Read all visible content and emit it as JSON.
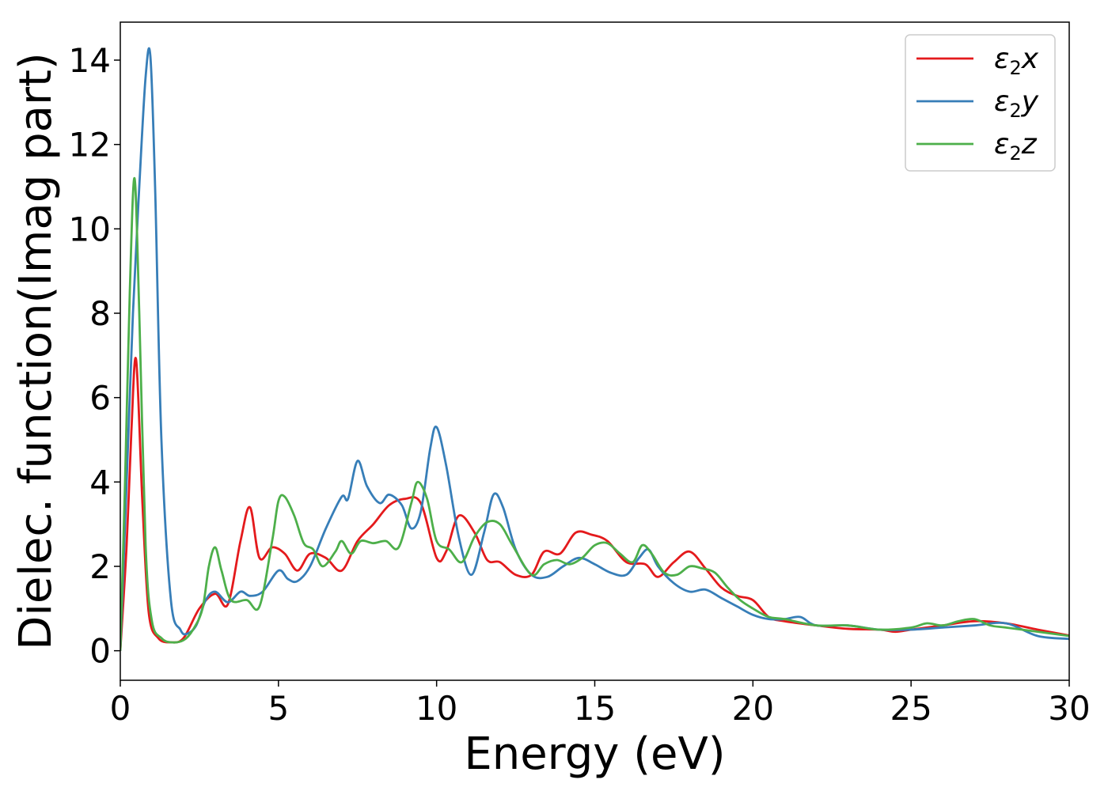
{
  "chart_data": {
    "type": "line",
    "xlabel": "Energy (eV)",
    "ylabel": "Dielec. function(Imag part)",
    "xlim": [
      0,
      30
    ],
    "ylim": [
      -0.7,
      14.9
    ],
    "xticks": [
      0,
      5,
      10,
      15,
      20,
      25,
      30
    ],
    "yticks": [
      0,
      2,
      4,
      6,
      8,
      10,
      12,
      14
    ],
    "grid": false,
    "legend_position": "top-right",
    "series": [
      {
        "name": "ε₂x",
        "legend_main": "ε",
        "legend_sub": "2",
        "legend_var": "x",
        "color": "#e41a1c",
        "x": [
          0,
          0.2,
          0.35,
          0.5,
          0.7,
          0.9,
          1.2,
          1.6,
          2.0,
          2.5,
          3.0,
          3.4,
          3.8,
          4.1,
          4.4,
          4.8,
          5.2,
          5.6,
          6.0,
          6.5,
          7.0,
          7.5,
          8.0,
          8.5,
          9.0,
          9.5,
          10.0,
          10.3,
          10.7,
          11.2,
          11.6,
          12.0,
          12.5,
          13.0,
          13.4,
          13.9,
          14.4,
          14.9,
          15.4,
          16.0,
          16.6,
          17.0,
          17.5,
          18.0,
          18.5,
          19.0,
          19.5,
          20.0,
          20.5,
          21.0,
          22.0,
          23.0,
          24.0,
          24.5,
          25.0,
          26.0,
          27.0,
          28.0,
          29.0,
          30.0
        ],
        "values": [
          0.0,
          2.5,
          5.2,
          6.9,
          3.5,
          0.9,
          0.3,
          0.2,
          0.3,
          1.0,
          1.35,
          1.1,
          2.6,
          3.4,
          2.2,
          2.45,
          2.3,
          1.9,
          2.3,
          2.2,
          1.9,
          2.6,
          3.0,
          3.45,
          3.6,
          3.5,
          2.2,
          2.35,
          3.2,
          2.8,
          2.15,
          2.1,
          1.8,
          1.8,
          2.35,
          2.3,
          2.8,
          2.75,
          2.6,
          2.1,
          2.05,
          1.75,
          2.1,
          2.35,
          1.95,
          1.5,
          1.3,
          1.2,
          0.8,
          0.7,
          0.6,
          0.52,
          0.5,
          0.45,
          0.5,
          0.6,
          0.7,
          0.65,
          0.5,
          0.36
        ]
      },
      {
        "name": "ε₂y",
        "legend_main": "ε",
        "legend_sub": "2",
        "legend_var": "y",
        "color": "#377eb8",
        "x": [
          0,
          0.2,
          0.4,
          0.6,
          0.8,
          0.95,
          1.1,
          1.3,
          1.6,
          1.9,
          2.1,
          2.4,
          2.7,
          3.0,
          3.4,
          3.8,
          4.1,
          4.5,
          5.0,
          5.3,
          5.6,
          6.0,
          6.5,
          7.0,
          7.2,
          7.5,
          7.8,
          8.2,
          8.5,
          8.9,
          9.2,
          9.5,
          9.8,
          10.0,
          10.3,
          10.7,
          11.1,
          11.5,
          11.8,
          12.1,
          12.5,
          13.0,
          13.5,
          14.0,
          14.5,
          15.0,
          15.5,
          16.0,
          16.4,
          16.7,
          17.0,
          17.5,
          18.0,
          18.5,
          19.0,
          19.5,
          20.0,
          20.5,
          21.0,
          21.5,
          22.0,
          23.0,
          24.0,
          25.0,
          26.0,
          27.0,
          28.0,
          29.0,
          30.0
        ],
        "values": [
          0.0,
          4.0,
          8.0,
          11.0,
          13.6,
          14.1,
          11.0,
          5.0,
          1.2,
          0.5,
          0.4,
          0.6,
          1.2,
          1.4,
          1.15,
          1.4,
          1.3,
          1.4,
          1.9,
          1.7,
          1.65,
          2.0,
          2.9,
          3.65,
          3.6,
          4.5,
          3.9,
          3.5,
          3.7,
          3.45,
          2.9,
          3.3,
          4.8,
          5.3,
          4.4,
          2.7,
          1.8,
          2.8,
          3.7,
          3.4,
          2.4,
          1.8,
          1.75,
          2.0,
          2.2,
          2.05,
          1.85,
          1.8,
          2.2,
          2.4,
          2.0,
          1.6,
          1.4,
          1.45,
          1.25,
          1.05,
          0.85,
          0.75,
          0.75,
          0.8,
          0.6,
          0.6,
          0.5,
          0.5,
          0.55,
          0.6,
          0.65,
          0.35,
          0.28
        ]
      },
      {
        "name": "ε₂z",
        "legend_main": "ε",
        "legend_sub": "2",
        "legend_var": "z",
        "color": "#4daf4a",
        "x": [
          0,
          0.15,
          0.3,
          0.45,
          0.6,
          0.8,
          1.0,
          1.3,
          1.6,
          2.0,
          2.3,
          2.6,
          2.8,
          3.0,
          3.2,
          3.5,
          4.0,
          4.4,
          4.8,
          5.0,
          5.2,
          5.5,
          5.8,
          6.1,
          6.4,
          6.8,
          7.0,
          7.3,
          7.6,
          8.0,
          8.4,
          8.8,
          9.2,
          9.4,
          9.7,
          10.0,
          10.4,
          10.8,
          11.2,
          11.6,
          12.0,
          12.4,
          13.0,
          13.4,
          13.8,
          14.2,
          14.6,
          15.0,
          15.4,
          15.8,
          16.2,
          16.5,
          16.8,
          17.2,
          17.6,
          18.0,
          18.4,
          18.8,
          19.2,
          19.6,
          20.0,
          20.5,
          21.0,
          22.0,
          23.0,
          24.0,
          25.0,
          25.5,
          26.0,
          26.5,
          27.0,
          27.5,
          28.0,
          29.0,
          30.0
        ],
        "values": [
          0.0,
          4.0,
          8.5,
          11.2,
          8.0,
          2.5,
          0.7,
          0.3,
          0.2,
          0.25,
          0.5,
          1.0,
          2.0,
          2.45,
          1.9,
          1.2,
          1.2,
          1.05,
          2.6,
          3.55,
          3.65,
          3.2,
          2.55,
          2.4,
          2.0,
          2.35,
          2.6,
          2.3,
          2.6,
          2.55,
          2.6,
          2.45,
          3.5,
          4.0,
          3.6,
          2.6,
          2.4,
          2.1,
          2.7,
          3.05,
          3.0,
          2.5,
          1.8,
          2.05,
          2.15,
          2.05,
          2.2,
          2.5,
          2.55,
          2.3,
          2.1,
          2.5,
          2.3,
          1.85,
          1.8,
          2.0,
          1.95,
          1.85,
          1.5,
          1.2,
          1.0,
          0.8,
          0.75,
          0.6,
          0.6,
          0.5,
          0.55,
          0.65,
          0.6,
          0.7,
          0.75,
          0.6,
          0.55,
          0.45,
          0.35
        ]
      }
    ]
  }
}
